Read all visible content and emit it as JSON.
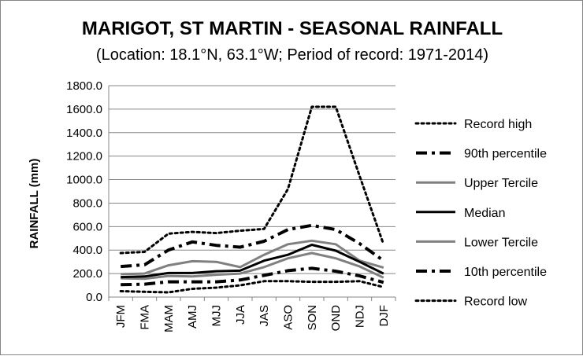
{
  "chart_data": {
    "type": "line",
    "title": "MARIGOT, ST MARTIN - SEASONAL RAINFALL",
    "subtitle": "(Location: 18.1°N, 63.1°W; Period of record: 1971-2014)",
    "xlabel": "",
    "ylabel": "RAINFALL (mm)",
    "ylim": [
      0,
      1800
    ],
    "ytick_step": 200,
    "ytick_labels": [
      "0.0",
      "200.0",
      "400.0",
      "600.0",
      "800.0",
      "1000.0",
      "1200.0",
      "1400.0",
      "1600.0",
      "1800.0"
    ],
    "categories": [
      "JFM",
      "FMA",
      "MAM",
      "AMJ",
      "MJJ",
      "JJA",
      "JAS",
      "ASO",
      "SON",
      "OND",
      "NDJ",
      "DJF"
    ],
    "grid": true,
    "legend_position": "right",
    "series": [
      {
        "name": "Record high",
        "values": [
          375,
          385,
          540,
          555,
          545,
          565,
          580,
          920,
          1620,
          1620,
          1030,
          450
        ],
        "color": "#000000",
        "style": "dotted",
        "width": 3
      },
      {
        "name": "90th percentile",
        "values": [
          260,
          275,
          400,
          470,
          440,
          425,
          475,
          575,
          610,
          575,
          455,
          310
        ],
        "color": "#000000",
        "style": "dashdot",
        "width": 4
      },
      {
        "name": "Upper Tercile",
        "values": [
          195,
          200,
          270,
          305,
          300,
          255,
          360,
          450,
          480,
          450,
          310,
          250
        ],
        "color": "#808080",
        "style": "solid",
        "width": 3
      },
      {
        "name": "Median",
        "values": [
          170,
          175,
          205,
          205,
          220,
          225,
          310,
          360,
          445,
          395,
          300,
          200
        ],
        "color": "#000000",
        "style": "solid",
        "width": 3
      },
      {
        "name": "Lower Tercile",
        "values": [
          160,
          155,
          180,
          175,
          190,
          200,
          255,
          330,
          375,
          330,
          260,
          165
        ],
        "color": "#808080",
        "style": "solid",
        "width": 3
      },
      {
        "name": "10th percentile",
        "values": [
          105,
          110,
          130,
          130,
          130,
          145,
          185,
          225,
          245,
          220,
          180,
          125
        ],
        "color": "#000000",
        "style": "dashdot",
        "width": 4
      },
      {
        "name": "Record low",
        "values": [
          50,
          45,
          40,
          70,
          80,
          100,
          135,
          135,
          130,
          130,
          135,
          85
        ],
        "color": "#000000",
        "style": "dotted",
        "width": 3
      }
    ]
  }
}
